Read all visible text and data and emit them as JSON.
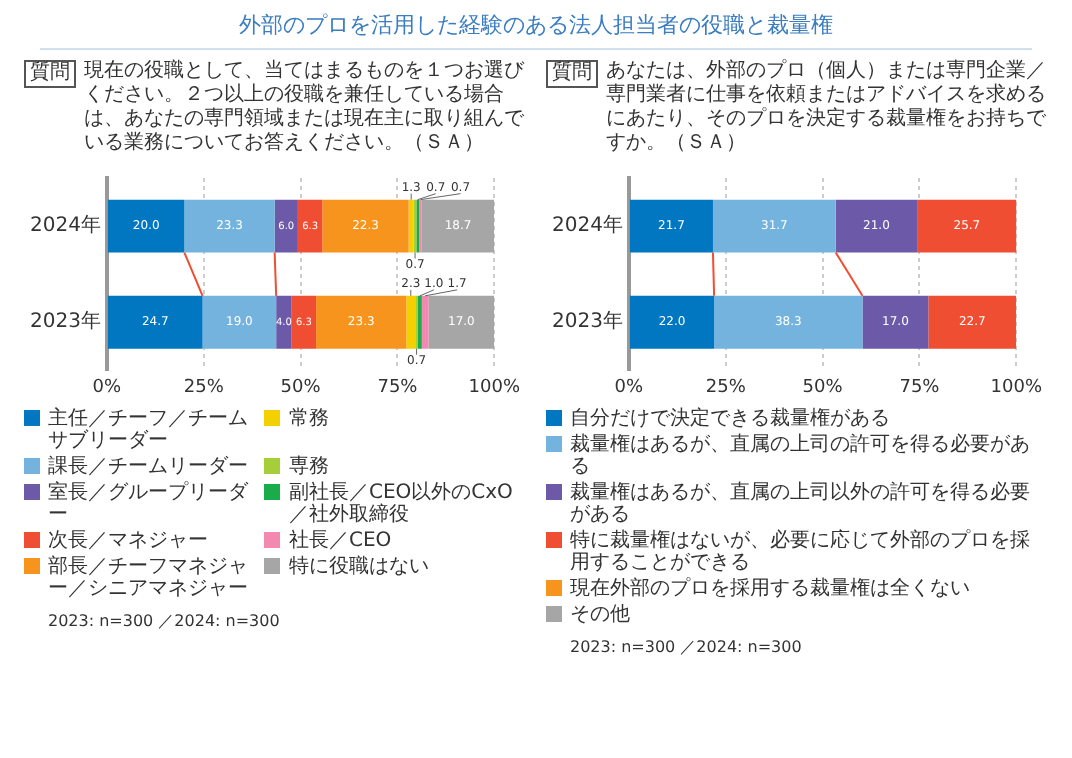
{
  "chart_data": [
    {
      "type": "bar",
      "orientation": "horizontal",
      "stacked": true,
      "title": "外部のプロを活用した経験のある法人担当者の役職と裁量権",
      "subtitle": "現在の役職として、当てはまるものを１つお選びください。２つ以上の役職を兼任している場合は、あなたの専門領域または現在主に取り組んでいる業務についてお答えください。（ＳＡ）",
      "annotations": [
        "質問",
        "2023: n=300 ／2024: n=300"
      ],
      "categories": [
        "2024年",
        "2023年"
      ],
      "xlim": [
        0,
        100
      ],
      "xticks": [
        {
          "value": 0,
          "label": "0%"
        },
        {
          "value": 25,
          "label": "25%"
        },
        {
          "value": 50,
          "label": "50%"
        },
        {
          "value": 75,
          "label": "75%"
        },
        {
          "value": 100,
          "label": "100%"
        }
      ],
      "grid": "x",
      "legend": "bottom",
      "series": [
        {
          "name": "主任／チーフ／チームサブリーダー",
          "color": "#0077c0",
          "values": [
            20.0,
            24.7
          ],
          "value_labels": [
            "20.0",
            "24.7"
          ]
        },
        {
          "name": "課長／チームリーダー",
          "color": "#74b3de",
          "values": [
            23.3,
            19.0
          ],
          "value_labels": [
            "23.3",
            "19.0"
          ]
        },
        {
          "name": "室長／グループリーダー",
          "color": "#6c5aa8",
          "values": [
            6.0,
            4.0
          ],
          "value_labels": [
            "6.0",
            "4.0"
          ]
        },
        {
          "name": "次長／マネジャー",
          "color": "#ef4e32",
          "values": [
            6.3,
            6.3
          ],
          "value_labels": [
            "6.3",
            "6.3"
          ]
        },
        {
          "name": "部長／チーフマネジャー／シニアマネジャー",
          "color": "#f7941d",
          "values": [
            22.3,
            23.3
          ],
          "value_labels": [
            "22.3",
            "23.3"
          ]
        },
        {
          "name": "常務",
          "color": "#f5d000",
          "values": [
            1.3,
            2.3
          ],
          "value_labels": [
            "1.3",
            "2.3"
          ]
        },
        {
          "name": "専務",
          "color": "#a6ce39",
          "values": [
            0.7,
            0.7
          ],
          "value_labels": [
            "0.7",
            "0.7"
          ]
        },
        {
          "name": "副社長／CEO以外のCxO／社外取締役",
          "color": "#1aab4b",
          "values": [
            0.7,
            1.0
          ],
          "value_labels": [
            "0.7",
            "1.0"
          ]
        },
        {
          "name": "社長／CEO",
          "color": "#f388b0",
          "values": [
            0.7,
            1.7
          ],
          "value_labels": [
            "0.7",
            "1.7"
          ]
        },
        {
          "name": "特に役職はない",
          "color": "#a6a6a6",
          "values": [
            18.7,
            17.0
          ],
          "value_labels": [
            "18.7",
            "17.0"
          ]
        }
      ]
    },
    {
      "type": "bar",
      "orientation": "horizontal",
      "stacked": true,
      "subtitle": "あなたは、外部のプロ（個人）または専門企業／専門業者に仕事を依頼またはアドバイスを求めるにあたり、そのプロを決定する裁量権をお持ちですか。（ＳＡ）",
      "annotations": [
        "質問",
        "2023: n=300 ／2024: n=300"
      ],
      "categories": [
        "2024年",
        "2023年"
      ],
      "xlim": [
        0,
        100
      ],
      "xticks": [
        {
          "value": 0,
          "label": "0%"
        },
        {
          "value": 25,
          "label": "25%"
        },
        {
          "value": 50,
          "label": "50%"
        },
        {
          "value": 75,
          "label": "75%"
        },
        {
          "value": 100,
          "label": "100%"
        }
      ],
      "grid": "x",
      "legend": "bottom",
      "series": [
        {
          "name": "自分だけで決定できる裁量権がある",
          "color": "#0077c0",
          "values": [
            21.7,
            22.0
          ],
          "value_labels": [
            "21.7",
            "22.0"
          ]
        },
        {
          "name": "裁量権はあるが、直属の上司の許可を得る必要がある",
          "color": "#74b3de",
          "values": [
            31.7,
            38.3
          ],
          "value_labels": [
            "31.7",
            "38.3"
          ]
        },
        {
          "name": "裁量権はあるが、直属の上司以外の許可を得る必要がある",
          "color": "#6c5aa8",
          "values": [
            21.0,
            17.0
          ],
          "value_labels": [
            "21.0",
            "17.0"
          ]
        },
        {
          "name": "特に裁量権はないが、必要に応じて外部のプロを採用することができる",
          "color": "#ef4e32",
          "values": [
            25.7,
            22.7
          ],
          "value_labels": [
            "25.7",
            "22.7"
          ]
        },
        {
          "name": "現在外部のプロを採用する裁量権は全くない",
          "color": "#f7941d",
          "values": [
            0,
            0
          ],
          "value_labels": [
            null,
            null
          ]
        },
        {
          "name": "その他",
          "color": "#a6a6a6",
          "values": [
            0,
            0
          ],
          "value_labels": [
            null,
            null
          ]
        }
      ]
    }
  ]
}
